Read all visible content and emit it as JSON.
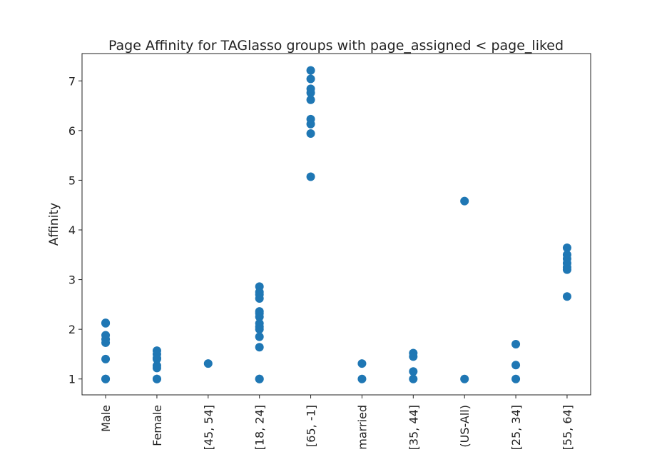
{
  "chart_data": {
    "type": "strip",
    "title": "Page Affinity for TAGlasso groups with page_assigned < page_liked",
    "y_label": "Affinity",
    "categories": [
      "Male",
      "Female",
      "[45, 54]",
      "[18, 24]",
      "[65, -1]",
      "married",
      "[35, 44]",
      "(US-All)",
      "[25, 34]",
      "[55, 64]"
    ],
    "values": [
      [
        2.13,
        2.12,
        1.88,
        1.8,
        1.73,
        1.4,
        1.0,
        1.0
      ],
      [
        1.57,
        1.5,
        1.42,
        1.4,
        1.27,
        1.22,
        1.0,
        1.0
      ],
      [
        1.31
      ],
      [
        2.86,
        2.75,
        2.7,
        2.62,
        2.36,
        2.32,
        2.25,
        2.12,
        2.05,
        2.0,
        1.85,
        1.64,
        1.0,
        1.0
      ],
      [
        7.21,
        7.04,
        6.84,
        6.76,
        6.62,
        6.23,
        6.13,
        5.94,
        5.07
      ],
      [
        1.31,
        1.0
      ],
      [
        1.52,
        1.45,
        1.15,
        1.0
      ],
      [
        4.58,
        1.0
      ],
      [
        1.7,
        1.28,
        1.0
      ],
      [
        3.64,
        3.5,
        3.42,
        3.33,
        3.25,
        3.2,
        2.66
      ]
    ],
    "color": "#1f77b4",
    "ylim": [
      0.68,
      7.55
    ],
    "yticks": [
      1,
      2,
      3,
      4,
      5,
      6,
      7
    ],
    "grid": false
  }
}
